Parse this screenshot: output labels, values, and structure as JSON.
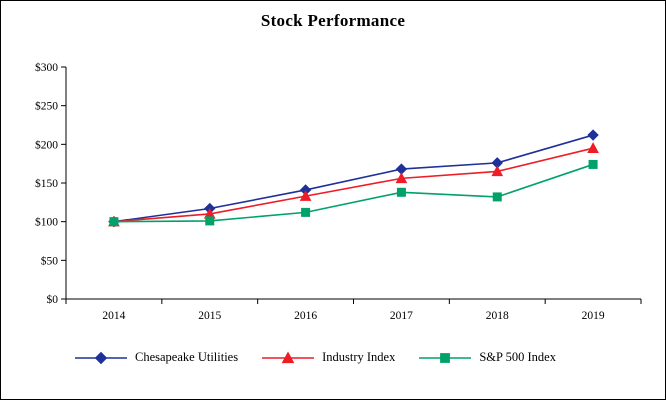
{
  "chart_data": {
    "type": "line",
    "title": "Stock Performance",
    "xlabel": "",
    "ylabel": "",
    "categories": [
      "2014",
      "2015",
      "2016",
      "2017",
      "2018",
      "2019"
    ],
    "ylim": [
      0,
      300
    ],
    "y_tick_values": [
      0,
      50,
      100,
      150,
      200,
      250,
      300
    ],
    "y_tick_labels": [
      "$0",
      "$50",
      "$100",
      "$150",
      "$200",
      "$250",
      "$300"
    ],
    "grid": false,
    "legend_position": "bottom",
    "series": [
      {
        "name": "Chesapeake Utilities",
        "marker": "diamond",
        "color": "#1f3099",
        "values": [
          100,
          117,
          141,
          168,
          176,
          212
        ]
      },
      {
        "name": "Industry Index",
        "marker": "triangle",
        "color": "#ee1c25",
        "values": [
          100,
          110,
          133,
          156,
          165,
          195
        ]
      },
      {
        "name": "S&P 500 Index",
        "marker": "square",
        "color": "#00a269",
        "values": [
          100,
          101,
          112,
          138,
          132,
          174
        ]
      }
    ]
  }
}
